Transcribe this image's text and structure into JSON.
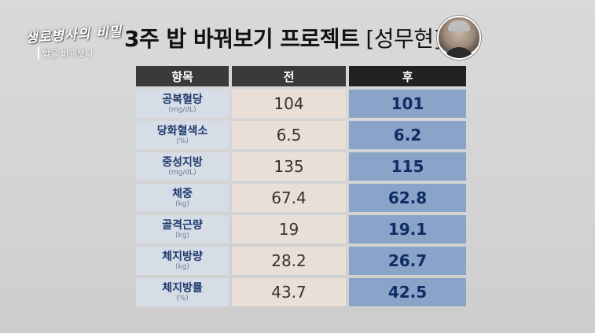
{
  "show": {
    "logo": "생로병사의 비밀",
    "episode": "밥을 바꿔보니"
  },
  "title": {
    "main": "3주 밥 바꿔보기 프로젝트",
    "person": "[성무현]"
  },
  "table": {
    "headers": {
      "item": "항목",
      "before": "전",
      "after": "후"
    },
    "rows": [
      {
        "name": "공복혈당",
        "unit": "(mg/dL)",
        "before": "104",
        "after": "101"
      },
      {
        "name": "당화혈색소",
        "unit": "(%)",
        "before": "6.5",
        "after": "6.2"
      },
      {
        "name": "중성지방",
        "unit": "(mg/dL)",
        "before": "135",
        "after": "115"
      },
      {
        "name": "체중",
        "unit": "(kg)",
        "before": "67.4",
        "after": "62.8"
      },
      {
        "name": "골격근량",
        "unit": "(kg)",
        "before": "19",
        "after": "19.1"
      },
      {
        "name": "체지방량",
        "unit": "(kg)",
        "before": "28.2",
        "after": "26.7"
      },
      {
        "name": "체지방률",
        "unit": "(%)",
        "before": "43.7",
        "after": "42.5"
      }
    ]
  },
  "colors": {
    "header_bg": "#3a3a3a",
    "before_bg": "#eadfd6",
    "after_bg": "#8aa3c8",
    "item_bg": "#d7dde6"
  }
}
